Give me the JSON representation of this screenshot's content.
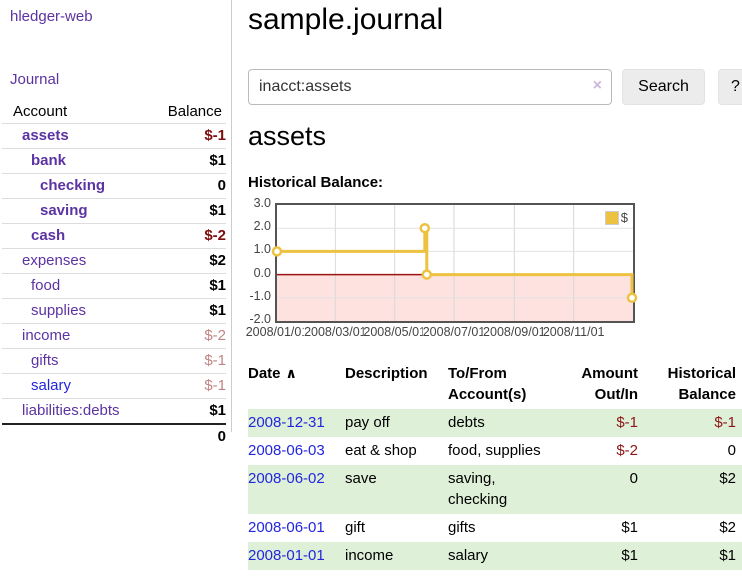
{
  "app": {
    "name": "hledger-web",
    "nav_journal": "Journal"
  },
  "header": {
    "title": "sample.journal"
  },
  "search": {
    "value": "inacct:assets",
    "clear_icon": "×",
    "search_label": "Search",
    "help_label": "?"
  },
  "sidebar": {
    "account_header": "Account",
    "balance_header": "Balance",
    "accounts": [
      {
        "name": "assets",
        "balance": "$-1",
        "level": 1,
        "bold": true,
        "balance_color": "negative"
      },
      {
        "name": "bank",
        "balance": "$1",
        "level": 2,
        "bold": true,
        "balance_color": "normal"
      },
      {
        "name": "checking",
        "balance": "0",
        "level": 3,
        "bold": true,
        "balance_color": "normal"
      },
      {
        "name": "saving",
        "balance": "$1",
        "level": 3,
        "bold": true,
        "balance_color": "normal"
      },
      {
        "name": "cash",
        "balance": "$-2",
        "level": 2,
        "bold": true,
        "balance_color": "negative"
      },
      {
        "name": "expenses",
        "balance": "$2",
        "level": 1,
        "bold": false,
        "balance_color": "normal"
      },
      {
        "name": "food",
        "balance": "$1",
        "level": 2,
        "bold": false,
        "balance_color": "normal"
      },
      {
        "name": "supplies",
        "balance": "$1",
        "level": 2,
        "bold": false,
        "balance_color": "normal"
      },
      {
        "name": "income",
        "balance": "$-2",
        "level": 1,
        "bold": false,
        "balance_color": "dimmed"
      },
      {
        "name": "gifts",
        "balance": "$-1",
        "level": 2,
        "bold": false,
        "balance_color": "dimmed"
      },
      {
        "name": "salary",
        "balance": "$-1",
        "level": 2,
        "bold": false,
        "balance_color": "dimmed",
        "link_color": "blue"
      },
      {
        "name": "liabilities:debts",
        "balance": "$1",
        "level": 1,
        "bold": false,
        "balance_color": "normal"
      }
    ],
    "total": "0"
  },
  "account_page": {
    "heading": "assets",
    "chart_label": "Historical Balance:"
  },
  "chart_data": {
    "type": "line",
    "step": true,
    "title": "Historical Balance:",
    "series": [
      {
        "name": "$",
        "color": "#EDC240",
        "points": [
          [
            "2008-01-01",
            1
          ],
          [
            "2008-06-01",
            2
          ],
          [
            "2008-06-03",
            0
          ],
          [
            "2008-12-31",
            -1
          ]
        ]
      }
    ],
    "xrange": [
      "2008-01-01",
      "2008-12-31"
    ],
    "ylim": [
      -2,
      3
    ],
    "yticks": [
      "3.0",
      "2.0",
      "1.0",
      "0.0",
      "-1.0",
      "-2.0"
    ],
    "xticks": [
      "2008/01/01",
      "2008/03/01",
      "2008/05/01",
      "2008/07/01",
      "2008/09/01",
      "2008/11/01"
    ],
    "grid": true,
    "legend": "$",
    "legend_position": "top-right",
    "negative_region_color": "#fde2e0",
    "zero_line_color": "#9c1212"
  },
  "register": {
    "sort_icon": "∧",
    "columns": [
      {
        "label": "Date"
      },
      {
        "label": "Description"
      },
      {
        "label": "To/From Account(s)"
      },
      {
        "label": "Amount Out/In"
      },
      {
        "label": "Historical Balance"
      }
    ],
    "rows": [
      {
        "date": "2008-12-31",
        "description": "pay off",
        "accounts": "debts",
        "amount": "$-1",
        "amount_negative": true,
        "balance": "$-1",
        "balance_negative": true,
        "highlighted": true
      },
      {
        "date": "2008-06-03",
        "description": "eat & shop",
        "accounts": "food, supplies",
        "amount": "$-2",
        "amount_negative": true,
        "balance": "0",
        "balance_negative": false,
        "highlighted": false
      },
      {
        "date": "2008-06-02",
        "description": "save",
        "accounts": "saving, checking",
        "amount": "0",
        "amount_negative": false,
        "balance": "$2",
        "balance_negative": false,
        "highlighted": true
      },
      {
        "date": "2008-06-01",
        "description": "gift",
        "accounts": "gifts",
        "amount": "$1",
        "amount_negative": false,
        "balance": "$2",
        "balance_negative": false,
        "highlighted": false
      },
      {
        "date": "2008-01-01",
        "description": "income",
        "accounts": "salary",
        "amount": "$1",
        "amount_negative": false,
        "balance": "$1",
        "balance_negative": false,
        "highlighted": true
      }
    ]
  },
  "colors": {
    "link_purple": "#5c33a2",
    "link_blue": "#2226dd",
    "negative_strong": "#7d0d0d",
    "negative_table": "#8b1717",
    "negative_dimmed": "#c08484",
    "row_highlight_green": "#dff0d8",
    "chart_line_gold": "#EDC240",
    "chart_negative_bg": "#fde2e0",
    "chart_zero_line": "#9c1212",
    "chart_border": "#545454"
  }
}
